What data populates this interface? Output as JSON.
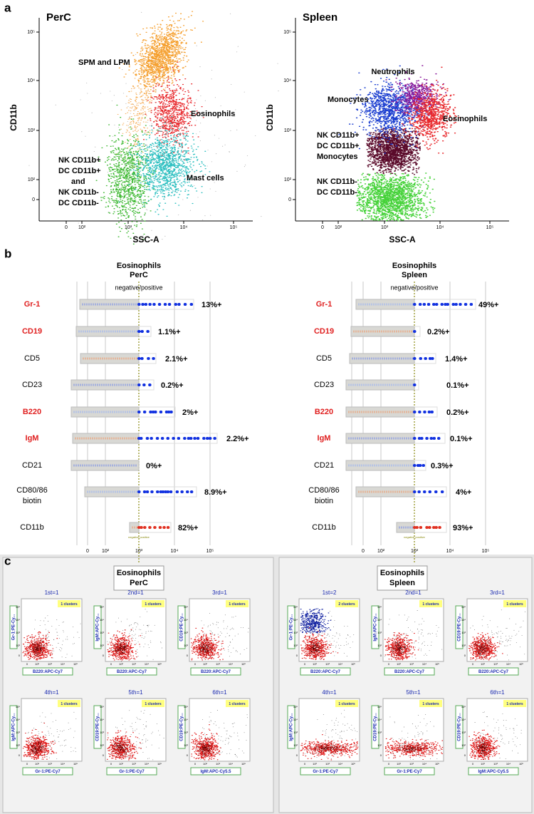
{
  "panel_a": {
    "letter": "a",
    "plots": [
      {
        "title": "PerC",
        "y_label": "CD11b",
        "x_label": "SSC-A",
        "y_ticks": [
          "10⁵",
          "10⁴",
          "10³",
          "10²",
          "0"
        ],
        "x_ticks": [
          "0",
          "10²",
          "10³",
          "10⁴",
          "10⁵"
        ],
        "populations": [
          {
            "label": [
              "SPM and LPM"
            ]
          },
          {
            "label": [
              "Eosinophils"
            ]
          },
          {
            "label": [
              "NK CD11b+",
              "DC CD11b+",
              "and",
              "NK CD11b-",
              "DC CD11b-"
            ]
          },
          {
            "label": [
              "Mast cells"
            ]
          }
        ]
      },
      {
        "title": "Spleen",
        "y_label": "CD11b",
        "x_label": "SSC-A",
        "y_ticks": [
          "10⁵",
          "10⁴",
          "10³",
          "10²",
          "0"
        ],
        "x_ticks": [
          "0",
          "10²",
          "10³",
          "10⁴",
          "10⁵"
        ],
        "populations": [
          {
            "label": [
              "Neutrophils"
            ]
          },
          {
            "label": [
              "Monocytes"
            ]
          },
          {
            "label": [
              "Eosinophils"
            ]
          },
          {
            "label": [
              "NK CD11b+",
              "DC CD11b+",
              "Monocytes"
            ]
          },
          {
            "label": [
              "NK CD11b-",
              "DC CD11b-"
            ]
          }
        ]
      }
    ]
  },
  "panel_b": {
    "letter": "b",
    "charts": [
      {
        "title": [
          "Eosinophils",
          "PerC"
        ],
        "subtitle": "negative/positive",
        "inner_note": "negative positive",
        "x_ticks": [
          "0",
          "10²",
          "10³",
          "10⁴",
          "10⁵"
        ],
        "rows": [
          {
            "label": [
              "Gr-1"
            ],
            "label_color": "#e02020",
            "percent": "13%+"
          },
          {
            "label": [
              "CD19"
            ],
            "label_color": "#e02020",
            "percent": "1.1%+"
          },
          {
            "label": [
              "CD5"
            ],
            "label_color": "#000000",
            "percent": "2.1%+"
          },
          {
            "label": [
              "CD23"
            ],
            "label_color": "#000000",
            "percent": "0.2%+"
          },
          {
            "label": [
              "B220"
            ],
            "label_color": "#e02020",
            "percent": "2%+"
          },
          {
            "label": [
              "IgM"
            ],
            "label_color": "#e02020",
            "percent": "2.2%+"
          },
          {
            "label": [
              "CD21"
            ],
            "label_color": "#000000",
            "percent": "0%+"
          },
          {
            "label": [
              "CD80/86",
              "biotin"
            ],
            "label_color": "#000000",
            "percent": "8.9%+"
          },
          {
            "label": [
              "CD11b"
            ],
            "label_color": "#000000",
            "percent": "82%+"
          }
        ]
      },
      {
        "title": [
          "Eosinophils",
          "Spleen"
        ],
        "subtitle": "negative/positive",
        "inner_note": "negative positive",
        "x_ticks": [
          "0",
          "10²",
          "10³",
          "10⁴",
          "10⁵"
        ],
        "rows": [
          {
            "label": [
              "Gr-1"
            ],
            "label_color": "#e02020",
            "percent": "49%+"
          },
          {
            "label": [
              "CD19"
            ],
            "label_color": "#e02020",
            "percent": "0.2%+"
          },
          {
            "label": [
              "CD5"
            ],
            "label_color": "#000000",
            "percent": "1.4%+"
          },
          {
            "label": [
              "CD23"
            ],
            "label_color": "#000000",
            "percent": "0.1%+"
          },
          {
            "label": [
              "B220"
            ],
            "label_color": "#e02020",
            "percent": "0.2%+"
          },
          {
            "label": [
              "IgM"
            ],
            "label_color": "#e02020",
            "percent": "0.1%+"
          },
          {
            "label": [
              "CD21"
            ],
            "label_color": "#000000",
            "percent": "0.3%+"
          },
          {
            "label": [
              "CD80/86",
              "biotin"
            ],
            "label_color": "#000000",
            "percent": "4%+"
          },
          {
            "label": [
              "CD11b"
            ],
            "label_color": "#000000",
            "percent": "93%+"
          }
        ]
      }
    ]
  },
  "panel_c": {
    "letter": "c",
    "tick_labels": [
      "0",
      "10²",
      "10³",
      "10⁴",
      "10⁵"
    ],
    "groups": [
      {
        "title": [
          "Eosinophils",
          "PerC"
        ],
        "plots": [
          {
            "title": "1st=1",
            "clusters": "1 clusters",
            "y_label": "Gr-1:PE-Cy...",
            "x_label": "B220:APC-Cy7"
          },
          {
            "title": "2nd=1",
            "clusters": "1 clusters",
            "y_label": "IgM:APC-Cy...",
            "x_label": "B220:APC-Cy7"
          },
          {
            "title": "3rd=1",
            "clusters": "1 clusters",
            "y_label": "CD19:PE-Cy...",
            "x_label": "B220:APC-Cy7"
          },
          {
            "title": "4th=1",
            "clusters": "1 clusters",
            "y_label": "IgM:APC-Cy...",
            "x_label": "Gr-1:PE-Cy7"
          },
          {
            "title": "5th=1",
            "clusters": "1 clusters",
            "y_label": "CD19:PE-Cy...",
            "x_label": "Gr-1:PE-Cy7"
          },
          {
            "title": "6th=1",
            "clusters": "1 clusters",
            "y_label": "CD19:PE-Cy...",
            "x_label": "IgM:APC-Cy5.5"
          }
        ]
      },
      {
        "title": [
          "Eosinophils",
          "Spleen"
        ],
        "plots": [
          {
            "title": "1st=2",
            "clusters": "2 clusters",
            "y_label": "Gr-1:PE-Cy...",
            "x_label": "B220:APC-Cy7"
          },
          {
            "title": "2nd=1",
            "clusters": "1 clusters",
            "y_label": "IgM:APC-Cy...",
            "x_label": "B220:APC-Cy7"
          },
          {
            "title": "3rd=1",
            "clusters": "1 clusters",
            "y_label": "CD19:PE-Cy...",
            "x_label": "B220:APC-Cy7"
          },
          {
            "title": "4th=1",
            "clusters": "1 clusters",
            "y_label": "IgM:APC-Cy...",
            "x_label": "Gr-1:PE-Cy7"
          },
          {
            "title": "5th=1",
            "clusters": "1 clusters",
            "y_label": "CD19:PE-Cy...",
            "x_label": "Gr-1:PE-Cy7"
          },
          {
            "title": "6th=1",
            "clusters": "1 clusters",
            "y_label": "CD19:PE-Cy...",
            "x_label": "IgM:APC-Cy5.5"
          }
        ]
      }
    ]
  }
}
